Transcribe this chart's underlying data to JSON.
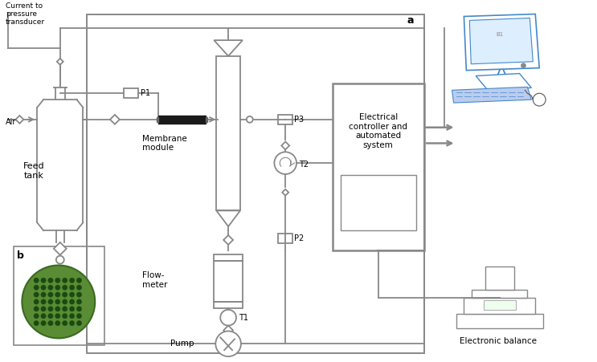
{
  "bg_color": "#ffffff",
  "line_color": "#888888",
  "dark_color": "#555555",
  "text_color": "#000000",
  "blue_color": "#4488cc",
  "green_color": "#5a9a3c",
  "labels": {
    "current_to_pressure": "Current to\npressure\ntransducer",
    "air": "Air",
    "p1": "P1",
    "feed_tank": "Feed\ntank",
    "membrane_module": "Membrane\nmodule",
    "p3": "P3",
    "t2": "T2",
    "p2": "P2",
    "flowmeter": "Flow-\nmeter",
    "t1": "T1",
    "pump": "Pump",
    "electrical": "Electrical\ncontroller and\nautomated\nsystem",
    "electronic_balance": "Electronic balance",
    "a_label": "a",
    "b_label": "b"
  }
}
